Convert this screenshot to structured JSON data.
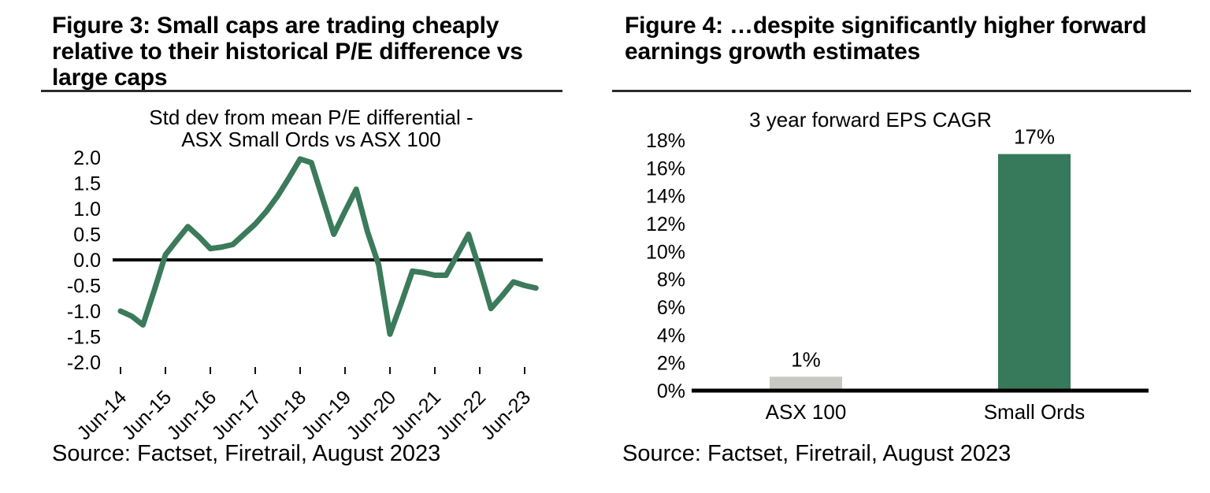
{
  "left_panel": {
    "title_lines": [
      "Figure 3: Small caps are trading cheaply",
      "relative to their historical P/E difference vs",
      "large caps"
    ],
    "source": "Source: Factset, Firetrail, August 2023"
  },
  "right_panel": {
    "title_lines": [
      "Figure 4: …despite significantly higher forward",
      "earnings growth estimates"
    ],
    "source": "Source: Factset, Firetrail, August 2023"
  },
  "chart_data": [
    {
      "type": "line",
      "title": "Std dev from mean P/E differential - ASX Small Ords vs ASX 100",
      "title_lines": [
        "Std dev from mean P/E differential -",
        "ASX Small Ords vs ASX 100"
      ],
      "x": [
        "Jun-14",
        "Sep-14",
        "Dec-14",
        "Mar-15",
        "Jun-15",
        "Sep-15",
        "Dec-15",
        "Mar-16",
        "Jun-16",
        "Sep-16",
        "Dec-16",
        "Mar-17",
        "Jun-17",
        "Sep-17",
        "Dec-17",
        "Mar-18",
        "Jun-18",
        "Sep-18",
        "Dec-18",
        "Mar-19",
        "Jun-19",
        "Sep-19",
        "Dec-19",
        "Mar-20",
        "Jun-20",
        "Sep-20",
        "Dec-20",
        "Mar-21",
        "Jun-21",
        "Sep-21",
        "Dec-21",
        "Mar-22",
        "Jun-22",
        "Sep-22",
        "Dec-22",
        "Mar-23",
        "Jun-23",
        "Sep-23"
      ],
      "values": [
        -1.0,
        -1.1,
        -1.27,
        -0.6,
        0.1,
        0.38,
        0.65,
        0.45,
        0.22,
        0.25,
        0.3,
        0.5,
        0.7,
        0.95,
        1.25,
        1.6,
        1.97,
        1.9,
        1.2,
        0.5,
        0.95,
        1.38,
        0.55,
        -0.1,
        -1.45,
        -0.85,
        -0.22,
        -0.25,
        -0.3,
        -0.3,
        0.1,
        0.5,
        -0.2,
        -0.95,
        -0.7,
        -0.43,
        -0.5,
        -0.55
      ],
      "x_tick_labels": [
        "Jun-14",
        "Jun-15",
        "Jun-16",
        "Jun-17",
        "Jun-18",
        "Jun-19",
        "Jun-20",
        "Jun-21",
        "Jun-22",
        "Jun-23"
      ],
      "ytick_labels": [
        "2.0",
        "1.5",
        "1.0",
        "0.5",
        "0.0",
        "-0.5",
        "-1.0",
        "-1.5",
        "-2.0"
      ],
      "ylim": [
        -2.0,
        2.0
      ],
      "ytick_step": 0.5,
      "zero_line": true,
      "grid": false,
      "legend": "none",
      "line_color": "#3B7A5A"
    },
    {
      "type": "bar",
      "title": "3 year forward EPS CAGR",
      "categories": [
        "ASX 100",
        "Small Ords"
      ],
      "values": [
        1,
        17
      ],
      "bar_labels": [
        "1%",
        "17%"
      ],
      "bar_colors": [
        "#C9C9C3",
        "#37795B"
      ],
      "ytick_labels": [
        "0%",
        "2%",
        "4%",
        "6%",
        "8%",
        "10%",
        "12%",
        "14%",
        "16%",
        "18%"
      ],
      "ylim": [
        0,
        18
      ],
      "ytick_step": 2,
      "grid": false,
      "legend": "none"
    }
  ]
}
